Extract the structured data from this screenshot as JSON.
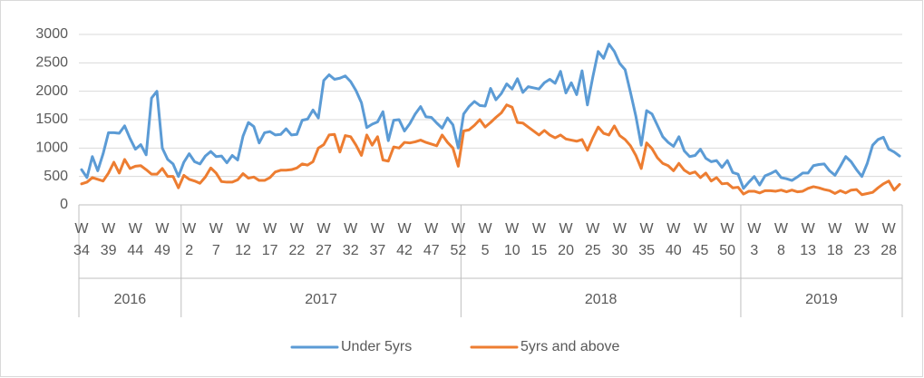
{
  "chart_data": {
    "type": "line",
    "groups": [
      {
        "label": "2016",
        "categories": [
          "W 34",
          null,
          null,
          null,
          null,
          "W 39",
          null,
          null,
          null,
          null,
          "W 44",
          null,
          null,
          null,
          null,
          "W 49",
          null,
          null,
          null
        ]
      },
      {
        "label": "2017",
        "categories": [
          null,
          "W 2",
          null,
          null,
          null,
          null,
          "W 7",
          null,
          null,
          null,
          null,
          "W 12",
          null,
          null,
          null,
          null,
          "W 17",
          null,
          null,
          null,
          null,
          "W 22",
          null,
          null,
          null,
          null,
          "W 27",
          null,
          null,
          null,
          null,
          "W 32",
          null,
          null,
          null,
          null,
          "W 37",
          null,
          null,
          null,
          null,
          "W 42",
          null,
          null,
          null,
          null,
          "W 47",
          null,
          null,
          null,
          null,
          "W 52"
        ]
      },
      {
        "label": "2018",
        "categories": [
          null,
          null,
          null,
          null,
          "W 5",
          null,
          null,
          null,
          null,
          "W 10",
          null,
          null,
          null,
          null,
          "W 15",
          null,
          null,
          null,
          null,
          "W 20",
          null,
          null,
          null,
          null,
          "W 25",
          null,
          null,
          null,
          null,
          "W 30",
          null,
          null,
          null,
          null,
          "W 35",
          null,
          null,
          null,
          null,
          "W 40",
          null,
          null,
          null,
          null,
          "W 45",
          null,
          null,
          null,
          null,
          "W 50",
          null,
          null
        ]
      },
      {
        "label": "2019",
        "categories": [
          null,
          null,
          "W 3",
          null,
          null,
          null,
          null,
          "W 8",
          null,
          null,
          null,
          null,
          "W 13",
          null,
          null,
          null,
          null,
          "W 18",
          null,
          null,
          null,
          null,
          "W 23",
          null,
          null,
          null,
          null,
          "W 28",
          null,
          null
        ]
      }
    ],
    "series": [
      {
        "name": "Under 5yrs",
        "color": "#5b9bd5",
        "values": [
          620,
          480,
          850,
          600,
          900,
          1270,
          1270,
          1260,
          1390,
          1170,
          980,
          1060,
          880,
          1880,
          2000,
          1000,
          800,
          720,
          500,
          750,
          900,
          760,
          720,
          860,
          940,
          850,
          860,
          740,
          870,
          790,
          1210,
          1450,
          1380,
          1090,
          1270,
          1290,
          1230,
          1240,
          1340,
          1230,
          1240,
          1490,
          1510,
          1670,
          1530,
          2190,
          2290,
          2210,
          2230,
          2270,
          2170,
          2010,
          1800,
          1360,
          1420,
          1460,
          1640,
          1130,
          1490,
          1500,
          1300,
          1430,
          1600,
          1730,
          1550,
          1540,
          1440,
          1350,
          1530,
          1410,
          1000,
          1600,
          1730,
          1820,
          1750,
          1740,
          2050,
          1850,
          1960,
          2130,
          2040,
          2220,
          1980,
          2080,
          2060,
          2040,
          2150,
          2210,
          2140,
          2350,
          1970,
          2150,
          1940,
          2360,
          1760,
          2250,
          2700,
          2580,
          2830,
          2700,
          2490,
          2380,
          1980,
          1560,
          1050,
          1660,
          1600,
          1400,
          1200,
          1100,
          1030,
          1200,
          950,
          850,
          870,
          980,
          820,
          760,
          780,
          660,
          780,
          570,
          540,
          290,
          400,
          500,
          350,
          510,
          550,
          600,
          480,
          460,
          430,
          490,
          560,
          560,
          690,
          710,
          720,
          600,
          520,
          680,
          850,
          760,
          620,
          500,
          730,
          1050,
          1150,
          1190,
          980,
          930,
          860
        ]
      },
      {
        "name": "5yrs and above",
        "color": "#ed7d31",
        "values": [
          370,
          400,
          480,
          450,
          420,
          560,
          750,
          560,
          800,
          640,
          680,
          690,
          620,
          540,
          540,
          640,
          500,
          500,
          300,
          520,
          450,
          420,
          380,
          490,
          650,
          560,
          410,
          400,
          400,
          440,
          550,
          470,
          490,
          430,
          430,
          480,
          580,
          610,
          610,
          620,
          650,
          720,
          700,
          760,
          1000,
          1060,
          1230,
          1240,
          930,
          1220,
          1200,
          1050,
          870,
          1230,
          1050,
          1200,
          790,
          770,
          1020,
          1000,
          1100,
          1090,
          1110,
          1140,
          1100,
          1070,
          1040,
          1230,
          1100,
          1000,
          680,
          1300,
          1320,
          1400,
          1500,
          1370,
          1450,
          1540,
          1620,
          1760,
          1720,
          1450,
          1440,
          1370,
          1300,
          1230,
          1310,
          1230,
          1180,
          1230,
          1160,
          1140,
          1120,
          1150,
          960,
          1180,
          1370,
          1260,
          1230,
          1390,
          1220,
          1150,
          1040,
          870,
          640,
          1090,
          990,
          830,
          730,
          690,
          600,
          730,
          610,
          550,
          580,
          480,
          560,
          420,
          480,
          370,
          380,
          300,
          310,
          190,
          240,
          240,
          210,
          250,
          250,
          240,
          260,
          230,
          260,
          230,
          240,
          290,
          320,
          300,
          270,
          250,
          200,
          250,
          210,
          260,
          270,
          180,
          200,
          220,
          300,
          370,
          420,
          260,
          360
        ]
      }
    ],
    "ylim": [
      0,
      3000
    ],
    "yticks": [
      0,
      500,
      1000,
      1500,
      2000,
      2500,
      3000
    ],
    "grid": true,
    "legend": "bottom"
  }
}
